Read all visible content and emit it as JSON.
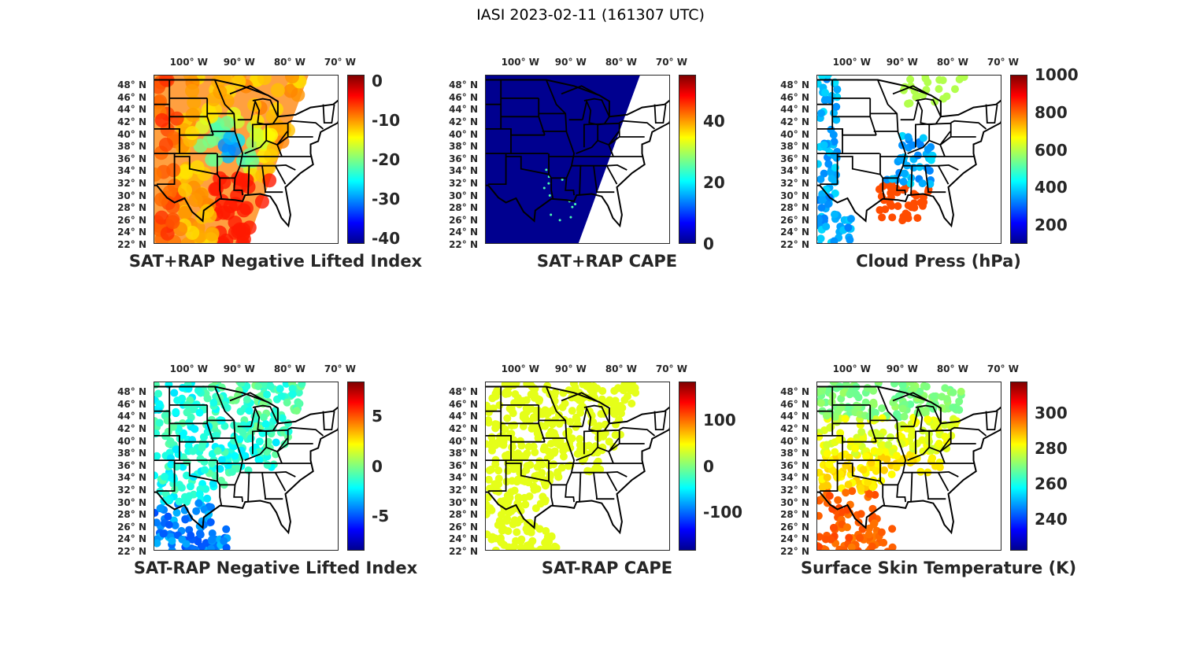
{
  "title": "IASI 2023-02-11 (161307 UTC)",
  "lon_ticks": [
    "100° W",
    "90° W",
    "80° W",
    "70° W"
  ],
  "lon_values": [
    -100,
    -90,
    -80,
    -70
  ],
  "lat_ticks": [
    "48° N",
    "46° N",
    "44° N",
    "42° N",
    "40° N",
    "38° N",
    "36° N",
    "34° N",
    "32° N",
    "30° N",
    "28° N",
    "26° N",
    "24° N",
    "22° N"
  ],
  "lat_values": [
    48,
    46,
    44,
    42,
    40,
    38,
    36,
    34,
    32,
    30,
    28,
    26,
    24,
    22
  ],
  "colormap": "jet",
  "panels": [
    {
      "title": "SAT+RAP Negative Lifted Index",
      "clim": [
        -41.5,
        1.5
      ],
      "ticks": [
        "0",
        "-10",
        "-20",
        "-30",
        "-40"
      ],
      "tick_values": [
        0,
        -10,
        -20,
        -30,
        -40
      ],
      "coverage": "full-swath",
      "dominant_color": "#ffa040"
    },
    {
      "title": "SAT+RAP CAPE",
      "clim": [
        0,
        55
      ],
      "ticks": [
        "40",
        "20",
        "0"
      ],
      "tick_values": [
        40,
        20,
        0
      ],
      "coverage": "full-swath",
      "dominant_color": "#00008f"
    },
    {
      "title": "Cloud Press (hPa)",
      "clim": [
        100,
        1000
      ],
      "ticks": [
        "1000",
        "800",
        "600",
        "400",
        "200"
      ],
      "tick_values": [
        1000,
        800,
        600,
        400,
        200
      ],
      "coverage": "cloudy-pixels",
      "dominant_color": "#0040ff"
    },
    {
      "title": "SAT-RAP Negative Lifted Index",
      "clim": [
        -8.5,
        8.5
      ],
      "ticks": [
        "5",
        "0",
        "-5"
      ],
      "tick_values": [
        5,
        0,
        -5
      ],
      "coverage": "clear-pixels",
      "dominant_color": "#40c0ff"
    },
    {
      "title": "SAT-RAP CAPE",
      "clim": [
        -185,
        185
      ],
      "ticks": [
        "100",
        "0",
        "-100"
      ],
      "tick_values": [
        100,
        0,
        -100
      ],
      "coverage": "clear-pixels",
      "dominant_color": "#80ff80"
    },
    {
      "title": "Surface Skin Temperature (K)",
      "clim": [
        222,
        318
      ],
      "ticks": [
        "300",
        "280",
        "260",
        "240"
      ],
      "tick_values": [
        300,
        280,
        260,
        240
      ],
      "coverage": "clear-pixels",
      "dominant_color": "#d0f040"
    }
  ]
}
